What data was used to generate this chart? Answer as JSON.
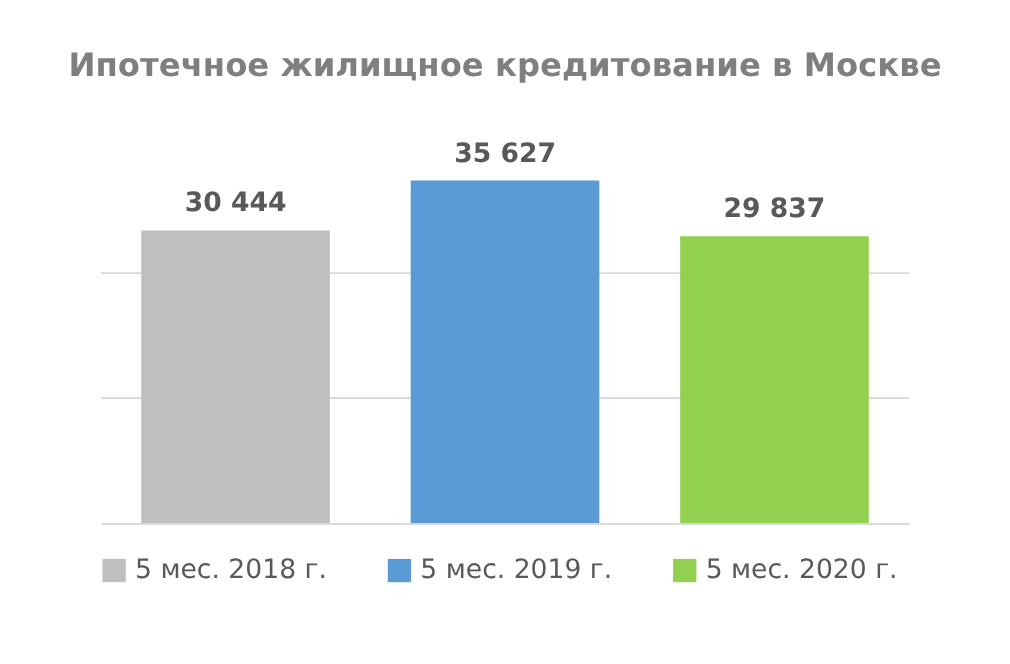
{
  "chart_data": {
    "type": "bar",
    "title": "Ипотечное жилищное кредитование в Москве",
    "categories": [
      null
    ],
    "series": [
      {
        "name": "5 мес. 2018 г.",
        "color": "#bfbfbf",
        "values": [
          30444
        ]
      },
      {
        "name": "5 мес. 2019 г.",
        "color": "#5b9bd5",
        "values": [
          35627
        ]
      },
      {
        "name": "5 мес. 2020 г.",
        "color": "#92d050",
        "values": [
          29837
        ]
      }
    ],
    "ref_lines": [
      {
        "axis": "y",
        "value": 13000,
        "color": "#d9d9d9"
      },
      {
        "axis": "y",
        "value": 26000,
        "color": "#d9d9d9"
      }
    ],
    "data_labels": true,
    "legend": "bottom",
    "tick_labels": false
  }
}
